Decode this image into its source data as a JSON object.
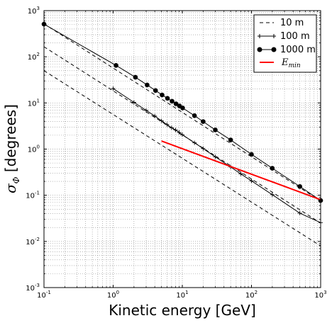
{
  "chart_data": {
    "type": "line",
    "xlabel": "Kinetic energy [GeV]",
    "ylabel": "σ_Φ [degrees]",
    "xlim": [
      0.1,
      1000
    ],
    "ylim": [
      0.001,
      1000
    ],
    "xscale": "log",
    "yscale": "log",
    "grid": true,
    "legend_placement": "top-right",
    "x_ticks": [
      {
        "base": "10",
        "exp": "-1"
      },
      {
        "base": "10",
        "exp": "0"
      },
      {
        "base": "10",
        "exp": "1"
      },
      {
        "base": "10",
        "exp": "2"
      },
      {
        "base": "10",
        "exp": "3"
      }
    ],
    "y_ticks": [
      {
        "base": "10",
        "exp": "-3"
      },
      {
        "base": "10",
        "exp": "-2"
      },
      {
        "base": "10",
        "exp": "-1"
      },
      {
        "base": "10",
        "exp": "0"
      },
      {
        "base": "10",
        "exp": "1"
      },
      {
        "base": "10",
        "exp": "2"
      },
      {
        "base": "10",
        "exp": "3"
      }
    ],
    "series": [
      {
        "name": "10 m",
        "style": "dashed",
        "color": "#000000",
        "lines": [
          [
            [
              0.1,
              50
            ],
            [
              1000,
              0.008
            ]
          ],
          [
            [
              0.1,
              165
            ],
            [
              1000,
              0.025
            ]
          ],
          [
            [
              0.1,
              520
            ],
            [
              1000,
              0.075
            ]
          ]
        ]
      },
      {
        "name": "100 m",
        "style": "plus-markers",
        "color": "#000000",
        "x": [
          1,
          2,
          3,
          4,
          5,
          6,
          7,
          8,
          9,
          10,
          15,
          20,
          30,
          50,
          70,
          100,
          200,
          500,
          1000
        ],
        "y": [
          20.5,
          10.3,
          6.9,
          5.2,
          4.1,
          3.4,
          2.9,
          2.6,
          2.3,
          2.05,
          1.37,
          1.03,
          0.68,
          0.41,
          0.29,
          0.205,
          0.103,
          0.041,
          0.0255
        ]
      },
      {
        "name": "1000 m",
        "style": "circle-markers",
        "color": "#000000",
        "x": [
          0.1,
          1.1,
          2.1,
          3.1,
          4.1,
          5.1,
          6.1,
          7.1,
          8.1,
          9.1,
          10.1,
          15,
          20,
          30,
          50,
          100,
          200,
          500,
          1000
        ],
        "y": [
          510,
          65,
          36,
          24.5,
          18.6,
          14.9,
          12.6,
          10.9,
          9.6,
          8.6,
          7.8,
          5.3,
          3.95,
          2.6,
          1.58,
          0.77,
          0.385,
          0.155,
          0.077
        ]
      },
      {
        "name": "E_min",
        "legend_base": "E",
        "legend_sub": "min",
        "style": "solid",
        "color": "#ff0000",
        "x": [
          5,
          1000
        ],
        "y": [
          1.5,
          0.08
        ]
      }
    ]
  }
}
